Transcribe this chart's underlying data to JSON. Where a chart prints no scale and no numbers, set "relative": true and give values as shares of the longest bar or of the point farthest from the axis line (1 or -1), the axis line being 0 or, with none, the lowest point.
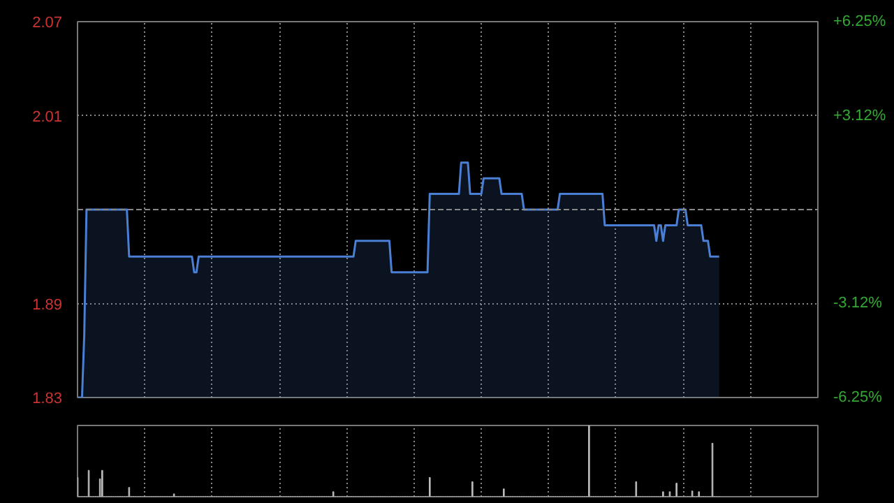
{
  "chart_data": [
    {
      "type": "area",
      "categories": [
        null,
        null,
        null,
        null,
        null,
        null,
        null,
        null,
        null,
        null,
        null,
        null,
        null,
        null,
        null,
        null,
        null,
        null,
        null,
        null,
        null,
        null,
        null,
        null,
        null,
        null,
        null,
        null,
        null,
        null,
        null,
        null,
        null,
        null,
        null,
        null,
        null,
        null,
        null,
        null,
        null,
        null,
        null,
        null,
        null,
        null,
        null,
        null,
        null,
        null,
        null,
        null,
        null,
        null,
        null,
        null,
        null,
        null,
        null,
        null,
        null,
        null,
        null,
        null,
        null,
        null,
        null,
        null,
        null,
        null,
        null,
        null,
        null,
        null,
        null,
        null,
        null,
        null,
        null,
        null,
        null,
        null,
        null,
        null,
        null,
        null,
        null,
        null,
        null,
        null,
        null,
        null,
        null,
        null,
        null,
        null,
        null,
        null,
        null,
        null,
        null,
        null,
        null,
        null,
        null,
        null,
        null,
        null,
        null,
        null,
        null,
        null,
        null,
        null,
        null,
        null,
        null,
        null,
        null,
        null,
        null,
        null,
        null,
        null,
        null,
        null,
        null,
        null,
        null,
        null,
        null,
        null,
        null,
        null,
        null,
        null,
        null,
        null,
        null,
        null,
        null,
        null,
        null,
        null,
        null,
        null,
        null,
        null,
        null,
        null,
        null,
        null,
        null,
        null,
        null,
        null,
        null,
        null,
        null,
        null,
        null,
        null,
        null,
        null,
        null,
        null,
        null,
        null,
        null,
        null,
        null,
        null,
        null,
        null,
        null,
        null,
        null,
        null,
        null,
        null,
        null,
        null,
        null,
        null,
        null,
        null,
        null,
        null,
        null,
        null,
        null,
        null,
        null,
        null,
        null,
        null,
        null,
        null,
        null,
        null,
        null,
        null,
        null,
        null,
        null,
        null,
        null,
        null,
        null,
        null,
        null,
        null,
        null,
        null,
        null,
        null,
        null,
        null,
        null,
        null,
        null,
        null,
        null,
        null,
        null,
        null,
        null,
        null,
        null,
        null,
        null,
        null,
        null,
        null,
        null,
        null,
        null,
        null,
        null,
        null,
        null,
        null,
        null,
        null,
        null,
        null,
        null,
        null,
        null,
        null,
        null,
        null,
        null,
        null,
        null,
        null,
        null,
        null,
        null,
        null,
        null,
        null,
        null,
        null,
        null,
        null,
        null,
        null,
        null,
        null,
        null,
        null,
        null,
        null,
        null,
        null,
        null,
        null,
        null,
        null,
        null,
        null,
        null,
        null,
        null,
        null,
        null
      ],
      "series": [
        {
          "color": "#4a7fd4",
          "values": [
            1.83,
            1.83,
            1.83,
            1.87,
            1.95,
            1.95,
            1.95,
            1.95,
            1.95,
            1.95,
            1.95,
            1.95,
            1.95,
            1.95,
            1.95,
            1.95,
            1.95,
            1.95,
            1.95,
            1.95,
            1.95,
            1.95,
            1.95,
            1.92,
            1.92,
            1.92,
            1.92,
            1.92,
            1.92,
            1.92,
            1.92,
            1.92,
            1.92,
            1.92,
            1.92,
            1.92,
            1.92,
            1.92,
            1.92,
            1.92,
            1.92,
            1.92,
            1.92,
            1.92,
            1.92,
            1.92,
            1.92,
            1.92,
            1.92,
            1.92,
            1.92,
            1.92,
            1.91,
            1.91,
            1.92,
            1.92,
            1.92,
            1.92,
            1.92,
            1.92,
            1.92,
            1.92,
            1.92,
            1.92,
            1.92,
            1.92,
            1.92,
            1.92,
            1.92,
            1.92,
            1.92,
            1.92,
            1.92,
            1.92,
            1.92,
            1.92,
            1.92,
            1.92,
            1.92,
            1.92,
            1.92,
            1.92,
            1.92,
            1.92,
            1.92,
            1.92,
            1.92,
            1.92,
            1.92,
            1.92,
            1.92,
            1.92,
            1.92,
            1.92,
            1.92,
            1.92,
            1.92,
            1.92,
            1.92,
            1.92,
            1.92,
            1.92,
            1.92,
            1.92,
            1.92,
            1.92,
            1.92,
            1.92,
            1.92,
            1.92,
            1.92,
            1.92,
            1.92,
            1.92,
            1.92,
            1.92,
            1.92,
            1.92,
            1.92,
            1.92,
            1.92,
            1.92,
            1.92,
            1.92,
            1.93,
            1.93,
            1.93,
            1.93,
            1.93,
            1.93,
            1.93,
            1.93,
            1.93,
            1.93,
            1.93,
            1.93,
            1.93,
            1.93,
            1.93,
            1.93,
            1.91,
            1.91,
            1.91,
            1.91,
            1.91,
            1.91,
            1.91,
            1.91,
            1.91,
            1.91,
            1.91,
            1.91,
            1.91,
            1.91,
            1.91,
            1.91,
            1.91,
            1.96,
            1.96,
            1.96,
            1.96,
            1.96,
            1.96,
            1.96,
            1.96,
            1.96,
            1.96,
            1.96,
            1.96,
            1.96,
            1.96,
            1.98,
            1.98,
            1.98,
            1.98,
            1.96,
            1.96,
            1.96,
            1.96,
            1.96,
            1.96,
            1.97,
            1.97,
            1.97,
            1.97,
            1.97,
            1.97,
            1.97,
            1.97,
            1.96,
            1.96,
            1.96,
            1.96,
            1.96,
            1.96,
            1.96,
            1.96,
            1.96,
            1.96,
            1.95,
            1.95,
            1.95,
            1.95,
            1.95,
            1.95,
            1.95,
            1.95,
            1.95,
            1.95,
            1.95,
            1.95,
            1.95,
            1.95,
            1.95,
            1.95,
            1.96,
            1.96,
            1.96,
            1.96,
            1.96,
            1.96,
            1.96,
            1.96,
            1.96,
            1.96,
            1.96,
            1.96,
            1.96,
            1.96,
            1.96,
            1.96,
            1.96,
            1.96,
            1.96,
            1.96,
            1.94,
            1.94,
            1.94,
            1.94,
            1.94,
            1.94,
            1.94,
            1.94,
            1.94,
            1.94,
            1.94,
            1.94,
            1.94,
            1.94,
            1.94,
            1.94,
            1.94,
            1.94,
            1.94,
            1.94,
            1.94,
            1.94,
            1.94,
            1.93,
            1.94,
            1.94,
            1.93,
            1.94,
            1.94,
            1.94,
            1.94,
            1.94,
            1.94,
            1.95,
            1.95,
            1.95,
            1.95,
            1.94,
            1.94,
            1.94,
            1.94,
            1.94,
            1.94,
            1.94,
            1.93,
            1.93,
            1.93,
            1.92,
            1.92,
            1.92,
            1.92,
            1.92
          ]
        }
      ],
      "ylim": [
        1.83,
        2.07
      ],
      "yticks": [
        1.83,
        1.89,
        2.01,
        2.07
      ],
      "y2lim": [
        -6.25,
        6.25
      ],
      "y2ticks": [
        {
          "value": -6.25,
          "label": "-6.25%"
        },
        {
          "value": -3.12,
          "label": "-3.12%"
        },
        {
          "value": 3.12,
          "label": "+3.12%"
        },
        {
          "value": 6.25,
          "label": "+6.25%"
        }
      ],
      "ref_lines": [
        {
          "axis": "y",
          "value": 1.95,
          "color": "#888888",
          "line_style": "dashed"
        }
      ],
      "grid": true
    },
    {
      "type": "bar",
      "relative": true,
      "categories": [
        null,
        null,
        null,
        null,
        null,
        null,
        null,
        null,
        null,
        null,
        null,
        null,
        null,
        null,
        null,
        null,
        null,
        null,
        null,
        null,
        null,
        null,
        null,
        null,
        null,
        null,
        null,
        null,
        null,
        null,
        null,
        null,
        null,
        null,
        null,
        null,
        null,
        null,
        null,
        null,
        null,
        null,
        null,
        null,
        null,
        null,
        null,
        null,
        null,
        null,
        null,
        null,
        null,
        null,
        null,
        null,
        null,
        null,
        null,
        null,
        null,
        null,
        null,
        null,
        null,
        null,
        null,
        null,
        null,
        null,
        null,
        null,
        null,
        null,
        null,
        null,
        null,
        null,
        null,
        null,
        null,
        null,
        null,
        null,
        null,
        null,
        null,
        null,
        null,
        null,
        null,
        null,
        null,
        null,
        null,
        null,
        null,
        null,
        null,
        null,
        null,
        null,
        null,
        null,
        null,
        null,
        null,
        null,
        null,
        null,
        null,
        null,
        null,
        null,
        null,
        null,
        null,
        null,
        null,
        null,
        null,
        null,
        null,
        null,
        null,
        null,
        null,
        null,
        null,
        null,
        null,
        null,
        null,
        null,
        null,
        null,
        null,
        null,
        null,
        null,
        null,
        null,
        null,
        null,
        null,
        null,
        null,
        null,
        null,
        null,
        null,
        null,
        null,
        null,
        null,
        null,
        null,
        null,
        null,
        null,
        null,
        null,
        null,
        null,
        null,
        null,
        null,
        null,
        null,
        null,
        null,
        null,
        null,
        null,
        null,
        null,
        null,
        null,
        null,
        null,
        null,
        null,
        null,
        null,
        null,
        null,
        null,
        null,
        null,
        null,
        null,
        null,
        null,
        null,
        null,
        null,
        null,
        null,
        null,
        null,
        null,
        null,
        null,
        null,
        null,
        null,
        null,
        null,
        null,
        null,
        null,
        null,
        null,
        null,
        null,
        null,
        null,
        null,
        null,
        null,
        null,
        null,
        null,
        null,
        null,
        null,
        null,
        null,
        null,
        null,
        null,
        null,
        null,
        null,
        null,
        null,
        null,
        null,
        null,
        null,
        null,
        null,
        null,
        null,
        null,
        null,
        null,
        null,
        null,
        null,
        null,
        null,
        null,
        null,
        null,
        null,
        null,
        null,
        null,
        null,
        null,
        null,
        null,
        null,
        null,
        null,
        null,
        null,
        null,
        null,
        null,
        null,
        null,
        null,
        null,
        null,
        null,
        null,
        null,
        null,
        null,
        null,
        null,
        null,
        null,
        null,
        null
      ],
      "values": [
        0.27,
        0,
        0,
        0,
        0,
        0.37,
        0,
        0,
        0,
        0,
        0.25,
        0.37,
        0,
        0,
        0,
        0,
        0,
        0,
        0,
        0,
        0,
        0,
        0,
        0.13,
        0,
        0,
        0,
        0,
        0,
        0,
        0,
        0,
        0,
        0,
        0,
        0,
        0,
        0,
        0,
        0,
        0,
        0,
        0,
        0.04,
        0,
        0,
        0,
        0,
        0,
        0,
        0,
        0,
        0,
        0,
        0,
        0,
        0,
        0,
        0,
        0,
        0,
        0,
        0,
        0,
        0,
        0,
        0,
        0,
        0,
        0,
        0,
        0,
        0,
        0,
        0,
        0,
        0,
        0,
        0,
        0,
        0,
        0,
        0,
        0,
        0,
        0,
        0,
        0,
        0,
        0,
        0,
        0,
        0,
        0,
        0,
        0,
        0,
        0,
        0,
        0,
        0,
        0,
        0,
        0,
        0,
        0,
        0,
        0,
        0,
        0,
        0,
        0,
        0,
        0,
        0.07,
        0,
        0,
        0,
        0,
        0,
        0,
        0,
        0,
        0,
        0,
        0,
        0,
        0,
        0,
        0,
        0,
        0,
        0,
        0,
        0,
        0,
        0,
        0,
        0,
        0,
        0,
        0,
        0,
        0,
        0,
        0,
        0,
        0,
        0,
        0,
        0,
        0,
        0,
        0,
        0,
        0,
        0,
        0.27,
        0,
        0,
        0,
        0,
        0,
        0,
        0,
        0,
        0,
        0,
        0,
        0,
        0,
        0,
        0,
        0,
        0,
        0,
        0.21,
        0,
        0,
        0,
        0,
        0,
        0,
        0,
        0,
        0,
        0,
        0,
        0,
        0,
        0.11,
        0,
        0,
        0,
        0,
        0,
        0,
        0,
        0,
        0,
        0,
        0,
        0,
        0,
        0,
        0,
        0,
        0,
        0,
        0,
        0,
        0,
        0,
        0,
        0,
        0,
        0,
        0,
        0,
        0,
        0,
        0,
        0,
        0,
        0,
        0,
        0,
        0,
        1,
        0,
        0,
        0,
        0,
        0,
        0,
        0,
        0,
        0,
        0,
        0,
        0,
        0,
        0,
        0,
        0,
        0,
        0,
        0,
        0,
        0.21,
        0,
        0,
        0,
        0,
        0,
        0,
        0,
        0,
        0,
        0,
        0,
        0.07,
        0,
        0,
        0.07,
        0,
        0,
        0.19,
        0,
        0,
        0,
        0,
        0,
        0,
        0.08,
        0,
        0,
        0.07,
        0,
        0,
        0,
        0,
        0,
        0.75,
        0,
        0,
        0
      ],
      "color": "#bbbbbb",
      "grid": "x"
    }
  ]
}
